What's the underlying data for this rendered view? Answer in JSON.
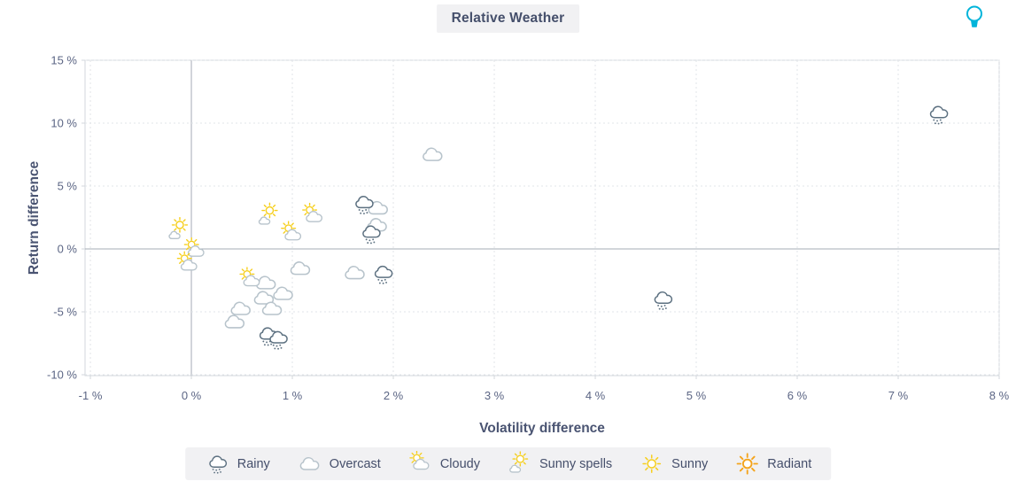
{
  "header": {
    "title": "Relative Weather"
  },
  "icons": {
    "header_action": "lightbulb-icon"
  },
  "colors": {
    "bg": "#ffffff",
    "panel": "#f1f1f3",
    "chip_text": "#454f6b",
    "title": "#4a5472",
    "text": "#5b6584",
    "grid": "#e1e4e8",
    "border": "#d3d7dc",
    "zero": "#a6acb6",
    "rainy": "#5c7080",
    "cloud": "#b7c3cb",
    "sun": "#f6cf1d",
    "radiant": "#f4a41c",
    "bulb": "#00b4da"
  },
  "chart_data": {
    "type": "scatter",
    "title": "Relative Weather",
    "xlabel": "Volatility difference",
    "ylabel": "Return difference",
    "xlim": [
      -1.053,
      8
    ],
    "ylim": [
      -10.07,
      15
    ],
    "x_ticks": [
      -1,
      0,
      1,
      2,
      3,
      4,
      5,
      6,
      7,
      8
    ],
    "y_ticks": [
      15,
      10,
      5,
      0,
      -5,
      -10
    ],
    "tick_suffix": " %",
    "grid": "dashed",
    "legend_position": "bottom",
    "series": [
      {
        "name": "Overcast",
        "icon": "overcast",
        "points": [
          [
            2.39,
            7.6
          ],
          [
            1.85,
            3.35
          ],
          [
            1.84,
            2.0
          ],
          [
            1.08,
            -1.45
          ],
          [
            1.62,
            -1.8
          ],
          [
            0.74,
            -2.6
          ],
          [
            0.91,
            -3.45
          ],
          [
            0.72,
            -3.8
          ],
          [
            0.49,
            -4.65
          ],
          [
            0.8,
            -4.65
          ],
          [
            0.43,
            -5.7
          ]
        ]
      },
      {
        "name": "Cloudy",
        "icon": "cloudy",
        "points": [
          [
            0.04,
            -0.05
          ],
          [
            -0.03,
            -1.15
          ],
          [
            1.21,
            2.7
          ],
          [
            1.0,
            1.25
          ],
          [
            0.59,
            -2.4
          ]
        ]
      },
      {
        "name": "Sunny spells",
        "icon": "sunny-spells",
        "points": [
          [
            -0.12,
            1.6
          ],
          [
            0.77,
            2.75
          ]
        ]
      },
      {
        "name": "Sunny",
        "icon": "sunny",
        "points": []
      },
      {
        "name": "Radiant",
        "icon": "radiant",
        "points": []
      },
      {
        "name": "Rainy",
        "icon": "rainy",
        "points": [
          [
            7.4,
            10.8
          ],
          [
            1.71,
            3.65
          ],
          [
            1.78,
            1.3
          ],
          [
            1.9,
            -1.9
          ],
          [
            4.67,
            -3.95
          ],
          [
            0.76,
            -6.8
          ],
          [
            0.86,
            -7.1
          ]
        ]
      }
    ]
  },
  "legend": {
    "items": [
      {
        "label": "Rainy",
        "icon": "rainy"
      },
      {
        "label": "Overcast",
        "icon": "overcast"
      },
      {
        "label": "Cloudy",
        "icon": "cloudy"
      },
      {
        "label": "Sunny spells",
        "icon": "sunny-spells"
      },
      {
        "label": "Sunny",
        "icon": "sunny"
      },
      {
        "label": "Radiant",
        "icon": "radiant"
      }
    ]
  }
}
